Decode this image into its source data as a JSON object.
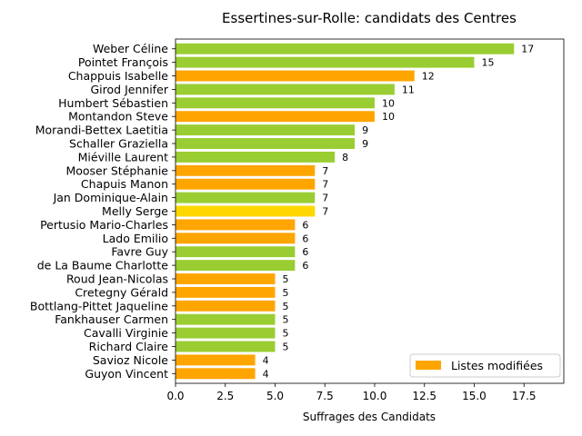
{
  "chart_data": {
    "type": "bar",
    "orientation": "horizontal",
    "title": "Essertines-sur-Rolle: candidats des Centres",
    "xlabel": "Suffrages des Candidats",
    "ylabel": "",
    "xlim": [
      0,
      19.5
    ],
    "xticks": [
      "0.0",
      "2.5",
      "5.0",
      "7.5",
      "10.0",
      "12.5",
      "15.0",
      "17.5"
    ],
    "xtick_values": [
      0,
      2.5,
      5,
      7.5,
      10,
      12.5,
      15,
      17.5
    ],
    "grid": false,
    "legend": {
      "label": "Listes modifiées",
      "color": "#ffa500",
      "placement": "lower-right"
    },
    "colors": {
      "green": "#9acd32",
      "orange": "#ffa500",
      "gold": "#ffd700"
    },
    "bars": [
      {
        "name": "Weber Céline",
        "value": 17,
        "color": "green"
      },
      {
        "name": "Pointet François",
        "value": 15,
        "color": "green"
      },
      {
        "name": "Chappuis Isabelle",
        "value": 12,
        "color": "orange"
      },
      {
        "name": "Girod Jennifer",
        "value": 11,
        "color": "green"
      },
      {
        "name": "Humbert Sébastien",
        "value": 10,
        "color": "green"
      },
      {
        "name": "Montandon Steve",
        "value": 10,
        "color": "orange"
      },
      {
        "name": "Morandi-Bettex Laetitia",
        "value": 9,
        "color": "green"
      },
      {
        "name": "Schaller Graziella",
        "value": 9,
        "color": "green"
      },
      {
        "name": "Miéville Laurent",
        "value": 8,
        "color": "green"
      },
      {
        "name": "Mooser Stéphanie",
        "value": 7,
        "color": "orange"
      },
      {
        "name": "Chapuis Manon",
        "value": 7,
        "color": "orange"
      },
      {
        "name": "Jan Dominique-Alain",
        "value": 7,
        "color": "green"
      },
      {
        "name": "Melly Serge",
        "value": 7,
        "color": "gold"
      },
      {
        "name": "Pertusio Mario-Charles",
        "value": 6,
        "color": "orange"
      },
      {
        "name": "Lado Emilio",
        "value": 6,
        "color": "orange"
      },
      {
        "name": "Favre Guy",
        "value": 6,
        "color": "green"
      },
      {
        "name": "de La Baume Charlotte",
        "value": 6,
        "color": "green"
      },
      {
        "name": "Roud Jean-Nicolas",
        "value": 5,
        "color": "orange"
      },
      {
        "name": "Cretegny Gérald",
        "value": 5,
        "color": "orange"
      },
      {
        "name": "Bottlang-Pittet Jaqueline",
        "value": 5,
        "color": "orange"
      },
      {
        "name": "Fankhauser Carmen",
        "value": 5,
        "color": "green"
      },
      {
        "name": "Cavalli Virginie",
        "value": 5,
        "color": "green"
      },
      {
        "name": "Richard Claire",
        "value": 5,
        "color": "green"
      },
      {
        "name": "Savioz Nicole",
        "value": 4,
        "color": "orange"
      },
      {
        "name": "Guyon Vincent",
        "value": 4,
        "color": "orange"
      }
    ]
  }
}
